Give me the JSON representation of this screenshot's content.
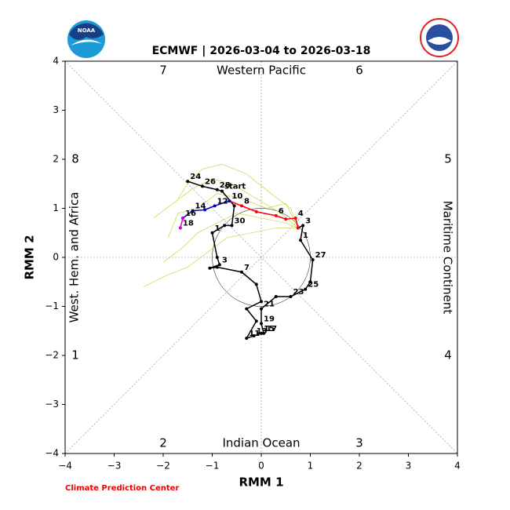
{
  "chart_data": {
    "type": "line",
    "title": "ECMWF | 2026-03-04 to 2026-03-18",
    "xlabel": "RMM 1",
    "ylabel": "RMM 2",
    "footer": "Climate Prediction Center",
    "logo_text": "NOAA",
    "xlim": [
      -4,
      4
    ],
    "ylim": [
      -4,
      4
    ],
    "xticks": [
      {
        "value": -4,
        "label": "−4"
      },
      {
        "value": -3,
        "label": "−3"
      },
      {
        "value": -2,
        "label": "−2"
      },
      {
        "value": -1,
        "label": "−1"
      },
      0,
      1,
      2,
      3,
      4
    ],
    "yticks": [
      {
        "value": -4,
        "label": "−4"
      },
      {
        "value": -3,
        "label": "−3"
      },
      {
        "value": -2,
        "label": "−2"
      },
      {
        "value": -1,
        "label": "−1"
      },
      0,
      1,
      2,
      3,
      4
    ],
    "phase_labels": [
      "1",
      "2",
      "3",
      "4",
      "5",
      "6",
      "7",
      "8"
    ],
    "region_labels": [
      "Western Pacific",
      "Indian Ocean",
      "West. Hem. and Africa",
      "Maritime Continent"
    ],
    "ensemble_members": [
      {
        "color": "#c8c820",
        "x": [
          0.75,
          0.4,
          -0.1,
          -0.6,
          -1.0,
          -1.4,
          -1.8,
          -2.2
        ],
        "y": [
          0.6,
          0.9,
          1.2,
          1.5,
          1.6,
          1.4,
          1.1,
          0.8
        ]
      },
      {
        "color": "#c8c820",
        "x": [
          0.75,
          0.5,
          0.0,
          -0.5,
          -0.9,
          -1.3,
          -1.6,
          -2.0
        ],
        "y": [
          0.6,
          0.7,
          0.8,
          0.9,
          0.7,
          0.5,
          0.2,
          -0.1
        ]
      },
      {
        "color": "#c8c820",
        "x": [
          0.75,
          0.6,
          0.2,
          -0.3,
          -0.8,
          -1.2,
          -1.5,
          -1.7
        ],
        "y": [
          0.6,
          1.0,
          1.3,
          1.7,
          1.9,
          1.8,
          1.5,
          1.2
        ]
      },
      {
        "color": "#c8c820",
        "x": [
          0.75,
          0.3,
          -0.2,
          -0.7,
          -1.1,
          -1.5,
          -2.0,
          -2.4
        ],
        "y": [
          0.6,
          0.6,
          0.5,
          0.4,
          0.1,
          -0.2,
          -0.4,
          -0.6
        ]
      },
      {
        "color": "#c8c820",
        "x": [
          0.75,
          0.5,
          0.1,
          -0.4,
          -0.9,
          -1.3,
          -1.7,
          -1.9
        ],
        "y": [
          0.6,
          1.1,
          1.0,
          1.2,
          1.3,
          1.0,
          0.9,
          0.4
        ]
      }
    ],
    "series": [
      {
        "name": "observed",
        "color": "#000000",
        "x": [
          -1.5,
          -1.2,
          -0.9,
          -0.8,
          -0.55,
          -0.6,
          -0.75,
          -1.0,
          -0.9,
          -0.85,
          -1.05,
          -0.9,
          -0.4,
          -0.1,
          0.0,
          -0.3,
          -0.1,
          -0.3,
          -0.15,
          0.0,
          0.05,
          0.0,
          0.0,
          0.3,
          0.6,
          0.9,
          1.0,
          1.05,
          0.8,
          0.85,
          0.75
        ],
        "y": [
          1.55,
          1.45,
          1.38,
          1.35,
          1.05,
          0.65,
          0.65,
          0.5,
          0.0,
          -0.15,
          -0.22,
          -0.2,
          -0.3,
          -0.55,
          -0.9,
          -1.05,
          -1.3,
          -1.65,
          -1.6,
          -1.55,
          -1.55,
          -1.35,
          -1.05,
          -0.8,
          -0.8,
          -0.65,
          -0.5,
          -0.05,
          0.35,
          0.65,
          0.6
        ],
        "point_labels": [
          "24",
          "26",
          "28",
          "start",
          null,
          "30",
          null,
          "1",
          null,
          "3",
          null,
          null,
          "7",
          null,
          null,
          null,
          null,
          "11",
          "13",
          "15",
          "17",
          "19",
          "21",
          null,
          "23",
          "25",
          null,
          "27",
          "1",
          "3",
          null
        ]
      },
      {
        "name": "forecast-1",
        "color": "#ff0000",
        "x": [
          0.75,
          0.7,
          0.5,
          0.3,
          -0.1,
          -0.4,
          -0.65
        ],
        "y": [
          0.6,
          0.8,
          0.78,
          0.85,
          0.93,
          1.05,
          1.15
        ],
        "point_labels": [
          null,
          "4",
          null,
          "6",
          null,
          "8",
          "10"
        ]
      },
      {
        "name": "forecast-2",
        "color": "#0000cc",
        "x": [
          -0.65,
          -0.95,
          -1.15,
          -1.4,
          -1.6
        ],
        "y": [
          1.15,
          1.05,
          0.97,
          0.95,
          0.8
        ],
        "point_labels": [
          null,
          "12",
          null,
          "14",
          "16"
        ]
      },
      {
        "name": "forecast-3",
        "color": "#cc00cc",
        "x": [
          -1.6,
          -1.65
        ],
        "y": [
          0.8,
          0.6
        ],
        "point_labels": [
          null,
          "18"
        ]
      }
    ]
  }
}
